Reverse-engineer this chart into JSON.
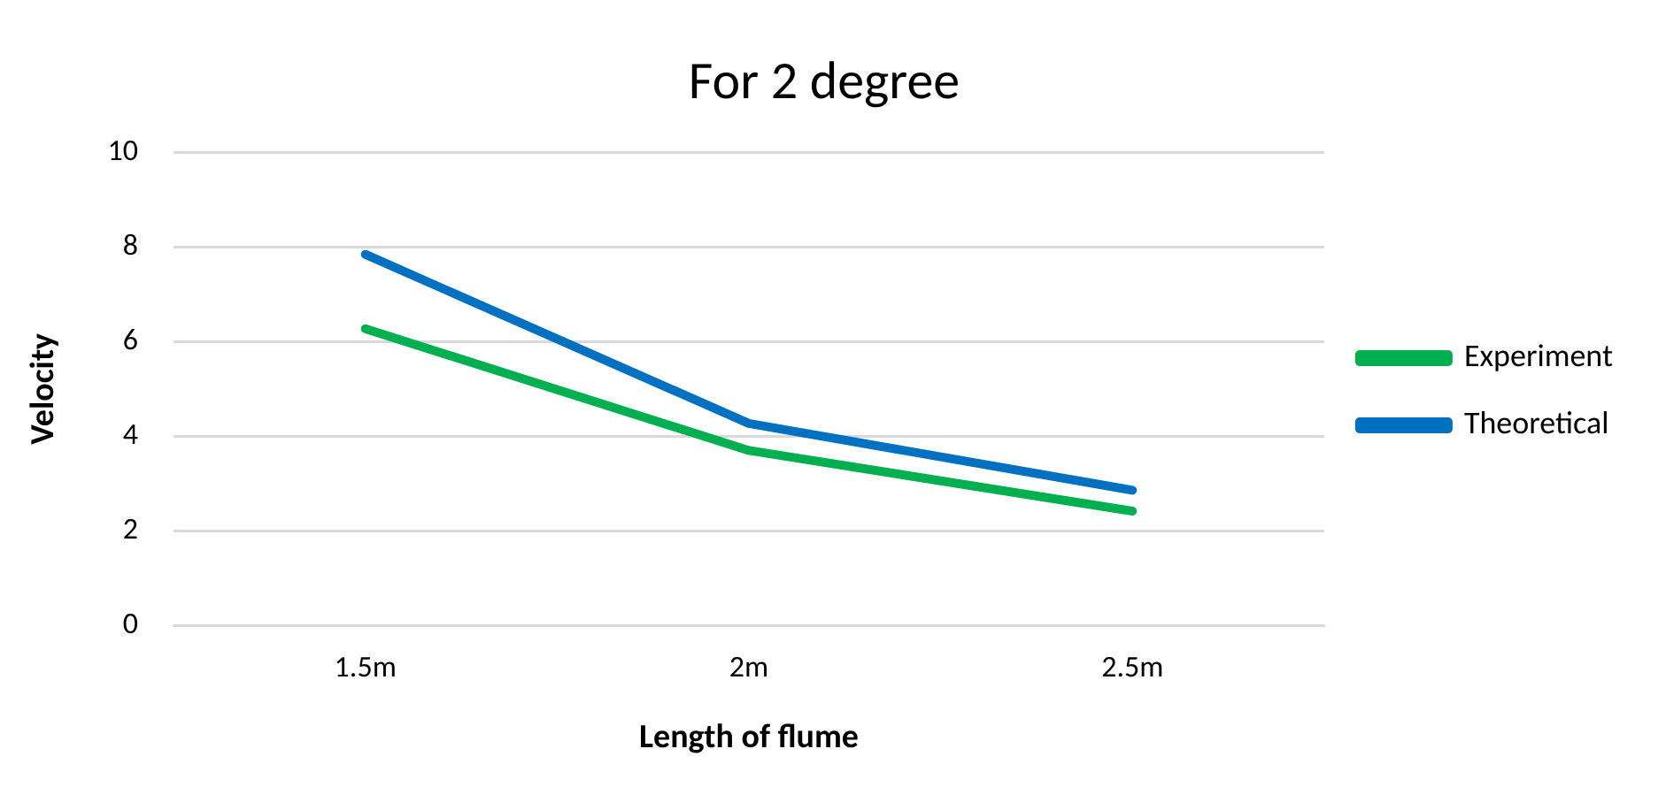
{
  "chart_data": {
    "type": "line",
    "title": "For 2 degree",
    "xlabel": "Length of flume",
    "ylabel": "Velocity",
    "categories": [
      "1.5m",
      "2m",
      "2.5m"
    ],
    "series": [
      {
        "name": "Experiment",
        "color": "#00b050",
        "values": [
          6.27,
          3.7,
          2.42
        ]
      },
      {
        "name": "Theoretical",
        "color": "#0070c0",
        "values": [
          7.84,
          4.27,
          2.86
        ]
      }
    ],
    "ylim": [
      0,
      10
    ],
    "yticks": [
      0,
      2,
      4,
      6,
      8,
      10
    ],
    "grid": "y",
    "legend": "right",
    "marker": "none"
  }
}
